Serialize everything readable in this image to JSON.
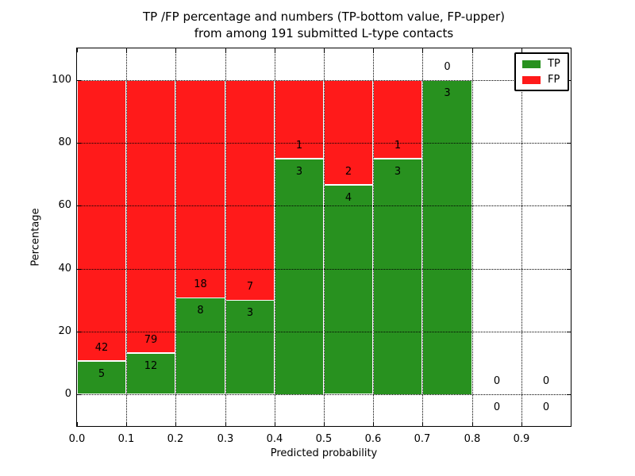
{
  "figure": {
    "title_line1": "TP /FP percentage and numbers (TP-bottom value, FP-upper)",
    "title_line2": "from among 191 submitted L-type contacts",
    "xlabel": "Predicted probability",
    "ylabel": "Percentage"
  },
  "chart_data": {
    "type": "bar",
    "stacked": true,
    "title": "TP /FP percentage and numbers (TP-bottom value, FP-upper)\nfrom among 191 submitted L-type contacts",
    "xlabel": "Predicted probability",
    "ylabel": "Percentage",
    "xlim": [
      0.0,
      1.0
    ],
    "ylim": [
      -10,
      110
    ],
    "bar_width": 0.1,
    "grid": true,
    "grid_style": "dotted",
    "total_contacts": 191,
    "legend_position": "upper right",
    "legend": [
      {
        "label": "TP",
        "color": "#28911f"
      },
      {
        "label": "FP",
        "color": "#ff1a1a"
      }
    ],
    "colors": {
      "tp": "#28911f",
      "fp": "#ff1a1a",
      "bar_edge": "#ffffff"
    },
    "x_ticks": [
      {
        "value": 0.0,
        "label": "0.0"
      },
      {
        "value": 0.1,
        "label": "0.1"
      },
      {
        "value": 0.2,
        "label": "0.2"
      },
      {
        "value": 0.3,
        "label": "0.3"
      },
      {
        "value": 0.4,
        "label": "0.4"
      },
      {
        "value": 0.5,
        "label": "0.5"
      },
      {
        "value": 0.6,
        "label": "0.6"
      },
      {
        "value": 0.7,
        "label": "0.7"
      },
      {
        "value": 0.8,
        "label": "0.8"
      },
      {
        "value": 0.9,
        "label": "0.9"
      }
    ],
    "y_ticks": [
      {
        "value": 0,
        "label": "0"
      },
      {
        "value": 20,
        "label": "20"
      },
      {
        "value": 40,
        "label": "40"
      },
      {
        "value": 60,
        "label": "60"
      },
      {
        "value": 80,
        "label": "80"
      },
      {
        "value": 100,
        "label": "100"
      }
    ],
    "bins": [
      {
        "range": "0.0-0.1",
        "x_start": 0.0,
        "tp_count": 5,
        "fp_count": 42,
        "tp_percent": 10.64
      },
      {
        "range": "0.1-0.2",
        "x_start": 0.1,
        "tp_count": 12,
        "fp_count": 79,
        "tp_percent": 13.19
      },
      {
        "range": "0.2-0.3",
        "x_start": 0.2,
        "tp_count": 8,
        "fp_count": 18,
        "tp_percent": 30.77
      },
      {
        "range": "0.3-0.4",
        "x_start": 0.3,
        "tp_count": 3,
        "fp_count": 7,
        "tp_percent": 30.0
      },
      {
        "range": "0.4-0.5",
        "x_start": 0.4,
        "tp_count": 3,
        "fp_count": 1,
        "tp_percent": 75.0
      },
      {
        "range": "0.5-0.6",
        "x_start": 0.5,
        "tp_count": 4,
        "fp_count": 2,
        "tp_percent": 66.67
      },
      {
        "range": "0.6-0.7",
        "x_start": 0.6,
        "tp_count": 3,
        "fp_count": 1,
        "tp_percent": 75.0
      },
      {
        "range": "0.7-0.8",
        "x_start": 0.7,
        "tp_count": 3,
        "fp_count": 0,
        "tp_percent": 100.0
      },
      {
        "range": "0.8-0.9",
        "x_start": 0.8,
        "tp_count": 0,
        "fp_count": 0,
        "tp_percent": 0.0
      },
      {
        "range": "0.9-1.0",
        "x_start": 0.9,
        "tp_count": 0,
        "fp_count": 0,
        "tp_percent": 0.0
      }
    ]
  }
}
